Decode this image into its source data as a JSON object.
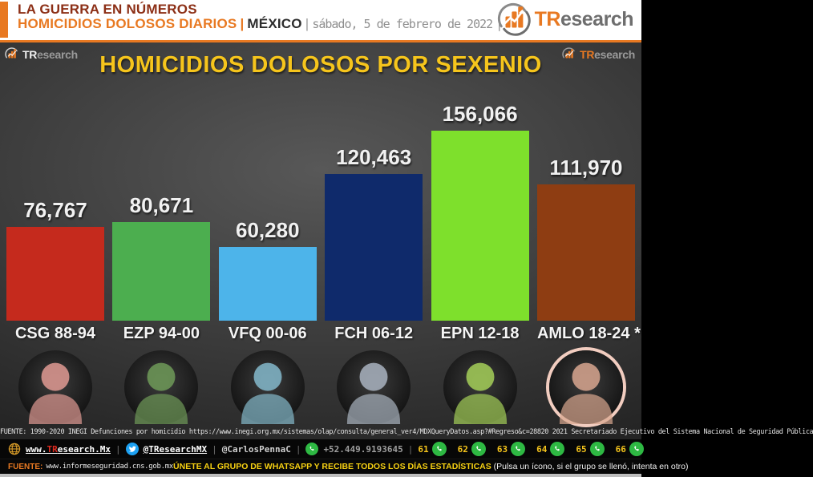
{
  "ui": {
    "sep": "|"
  },
  "brand": {
    "tr": "TR",
    "rest": "esearch"
  },
  "header": {
    "line1": "LA GUERRA EN NÚMEROS",
    "line2": "HOMICIDIOS DOLOSOS DIARIOS",
    "country": "MÉXICO",
    "date": "sábado, 5 de febrero de 2022"
  },
  "chart_data": {
    "type": "bar",
    "title": "HOMICIDIOS DOLOSOS POR SEXENIO",
    "xlabel": "",
    "ylabel": "",
    "ylim": [
      0,
      160000
    ],
    "grid": false,
    "legend": null,
    "categories": [
      "CSG 88-94",
      "EZP 94-00",
      "VFQ 00-06",
      "FCH 06-12",
      "EPN 12-18",
      "AMLO 18-24 *"
    ],
    "values": [
      76767,
      80671,
      60280,
      120463,
      156066,
      111970
    ],
    "bars": [
      {
        "label": "CSG 88-94",
        "value": 76767,
        "display": "76,767",
        "color": "#c52a1d",
        "tint": "#e09a93",
        "ring": null
      },
      {
        "label": "EZP 94-00",
        "value": 80671,
        "display": "80,671",
        "color": "#4cae4f",
        "tint": "#6f9a58",
        "ring": null
      },
      {
        "label": "VFQ 00-06",
        "value": 60280,
        "display": "60,280",
        "color": "#4db4ea",
        "tint": "#84b9cb",
        "ring": null
      },
      {
        "label": "FCH 06-12",
        "value": 120463,
        "display": "120,463",
        "color": "#0f2a6b",
        "tint": "#a9b3bf",
        "ring": null
      },
      {
        "label": "EPN 12-18",
        "value": 156066,
        "display": "156,066",
        "color": "#7ee02c",
        "tint": "#a4cf58",
        "ring": null
      },
      {
        "label": "AMLO 18-24 *",
        "value": 111970,
        "display": "111,970",
        "color": "#8e3d12",
        "tint": "#d8a68f",
        "ring": "#f2cdc0"
      }
    ]
  },
  "source_line": "FUENTE: 1990-2020 INEGI Defunciones por homicidio https://www.inegi.org.mx/sistemas/olap/consulta/general_ver4/MDXQueryDatos.asp?#Regreso&c=28820   2021 Secretariado Ejecutivo del Sistema Nacional de Seguridad Pública",
  "footer": {
    "website_prefix": "www.",
    "website_tr": "TR",
    "website_rest": "esearch.Mx",
    "twitter_handle": "@TResearchMX",
    "contact_handle": "@CarlosPennaC",
    "phone": "+52.449.9193645",
    "whatsapp_groups": [
      "61",
      "62",
      "63",
      "64",
      "65",
      "66"
    ],
    "fuente_label": "FUENTE:",
    "fuente_url": "www.informeseguridad.cns.gob.mx",
    "cta_bold": "ÚNETE AL GRUPO DE WHATSAPP Y RECIBE TODOS LOS DÍAS ESTADÍSTICAS",
    "cta_note": "(Pulsa un ícono, si el grupo se llenó, intenta en otro)"
  },
  "colors": {
    "accent_orange": "#e87922",
    "title_yellow": "#f6c51c",
    "maroon": "#8c2f16",
    "whatsapp_green": "#2eb943",
    "twitter_blue": "#1da1f2",
    "globe_gold": "#d79b28"
  }
}
